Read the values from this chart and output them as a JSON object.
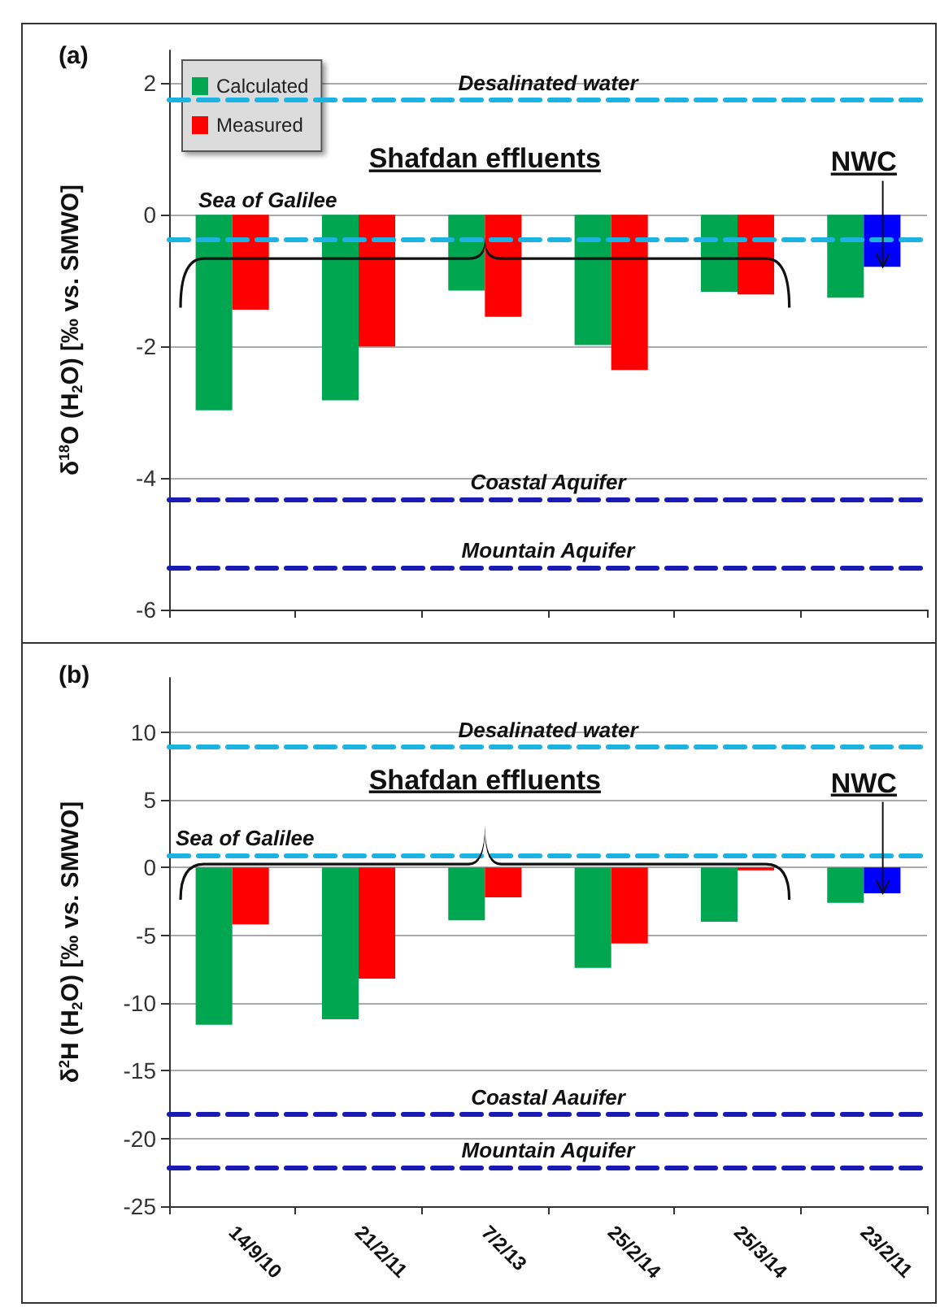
{
  "chart_data": [
    {
      "type": "bar",
      "ylabel": "δ$^{18}$O (H$_{2}$O) [‰ vs. SMWO]",
      "categories": [
        null,
        null,
        null,
        null,
        null,
        null
      ],
      "series": [
        {
          "name": "Calculated",
          "color": "#00a650",
          "values": [
            -2.97,
            -2.82,
            -1.15,
            -1.98,
            -1.17,
            -1.26
          ]
        },
        {
          "name": "Measured",
          "color": "#ff0000",
          "colors": [
            "#ff0000",
            "#ff0000",
            "#ff0000",
            "#ff0000",
            "#ff0000",
            "#0000ff"
          ],
          "values": [
            -1.44,
            -2.0,
            -1.55,
            -2.36,
            -1.21,
            -0.79
          ]
        }
      ],
      "ylim": [
        -6,
        2.5
      ],
      "yticks": [
        -6,
        -4,
        -2,
        0,
        2
      ],
      "grid": "y",
      "legend": "top left",
      "tick_labels": "y",
      "ref_lines": [
        {
          "axis": "y",
          "value": 1.75,
          "label": "Desalinated water",
          "color": "#1cb3e3",
          "line_style": "dashed"
        },
        {
          "axis": "y",
          "value": -0.38,
          "label": "Sea of Galilee",
          "color": "#1cb3e3",
          "line_style": "dashed"
        },
        {
          "axis": "y",
          "value": -4.32,
          "label": "Coastal Aquifer",
          "color": "#1a1ab5",
          "line_style": "dashed"
        },
        {
          "axis": "y",
          "value": -5.36,
          "label": "Mountain Aquifer",
          "color": "#1a1ab5",
          "line_style": "dashed"
        }
      ],
      "annotations": [
        "(a)",
        "Shafdan effluents",
        "NWC"
      ]
    },
    {
      "type": "bar",
      "ylabel": "δ$^{2}$H (H$_{2}$O) [‰ vs. SMWO]",
      "categories": [
        "14/9/10",
        "21/2/11",
        "7/2/13",
        "25/2/14",
        "25/3/14",
        "23/2/11"
      ],
      "series": [
        {
          "color": "#00a650",
          "values": [
            -11.6,
            -11.2,
            -3.9,
            -7.4,
            -4.0,
            -2.6
          ]
        },
        {
          "color": "#ff0000",
          "colors": [
            "#ff0000",
            "#ff0000",
            "#ff0000",
            "#ff0000",
            "#ff0000",
            "#0000ff"
          ],
          "values": [
            -4.2,
            -8.2,
            -2.2,
            -5.6,
            -0.2,
            -1.9
          ]
        }
      ],
      "ylim": [
        -25,
        14
      ],
      "yticks": [
        -25,
        -20,
        -15,
        -10,
        -5,
        0,
        5,
        10
      ],
      "grid": "y",
      "ref_lines": [
        {
          "axis": "y",
          "value": 8.9,
          "label": "Desalinated water",
          "color": "#1cb3e3",
          "line_style": "dashed"
        },
        {
          "axis": "y",
          "value": 0.9,
          "label": "Sea of Galilee",
          "color": "#1cb3e3",
          "line_style": "dashed"
        },
        {
          "axis": "y",
          "value": -18.2,
          "label": "Coastal Aauifer",
          "color": "#1a1ab5",
          "line_style": "dashed"
        },
        {
          "axis": "y",
          "value": -22.1,
          "label": "Mountain Aquifer",
          "color": "#1a1ab5",
          "line_style": "dashed"
        }
      ],
      "annotations": [
        "(b)",
        "Shafdan effluents",
        {
          "text": "NWC",
          "x": "23/2/11",
          "y": -1.9
        }
      ]
    }
  ]
}
